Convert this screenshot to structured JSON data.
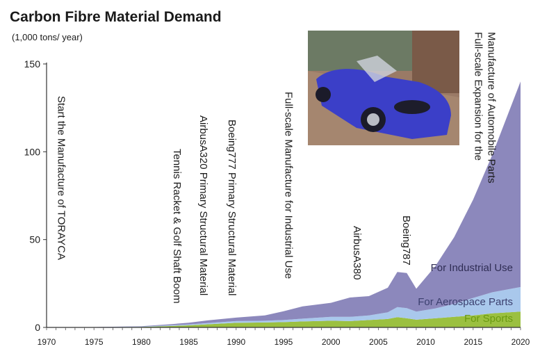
{
  "chart_data": {
    "type": "area",
    "title": "Carbon Fibre Material Demand",
    "ylabel": "(1,000 tons/ year)",
    "xlabel": "",
    "xlim": [
      1970,
      2020
    ],
    "ylim": [
      0,
      150
    ],
    "x_ticks": [
      1970,
      1975,
      1980,
      1985,
      1990,
      1995,
      2000,
      2005,
      2010,
      2015,
      2020
    ],
    "y_ticks": [
      0,
      50,
      100,
      150
    ],
    "x": [
      1970,
      1975,
      1980,
      1983,
      1985,
      1987,
      1990,
      1993,
      1995,
      1997,
      2000,
      2002,
      2004,
      2006,
      2007,
      2008,
      2009,
      2011,
      2013,
      2015,
      2017,
      2020
    ],
    "stacked": true,
    "series": [
      {
        "name": "For Sports",
        "color": "#9bc040",
        "values": [
          0,
          0.1,
          0.3,
          0.8,
          1.2,
          1.8,
          2.6,
          2.8,
          3.0,
          3.4,
          3.8,
          3.6,
          4.2,
          4.8,
          5.8,
          5.2,
          4.4,
          5.2,
          6.0,
          6.8,
          8.0,
          9.0
        ]
      },
      {
        "name": "For Aerospace Parts",
        "color": "#a9c8ec",
        "values": [
          0,
          0.05,
          0.2,
          0.4,
          0.5,
          0.7,
          1.0,
          1.0,
          1.2,
          1.6,
          2.2,
          2.4,
          2.6,
          3.8,
          5.8,
          5.8,
          4.6,
          5.6,
          7.4,
          10.0,
          12.0,
          14.0
        ]
      },
      {
        "name": "For Industrial Use",
        "color": "#8c88bc",
        "values": [
          0,
          0.05,
          0.2,
          0.6,
          1.0,
          1.5,
          2.0,
          3.0,
          5.0,
          7.0,
          8.0,
          11.0,
          11.0,
          14.0,
          20.0,
          20.0,
          13.0,
          24.0,
          38.0,
          56.0,
          78.0,
          117.0
        ]
      }
    ],
    "annotations": [
      {
        "text": "Start the Manufacture of TORAYCA",
        "x": 1971.2
      },
      {
        "text": "Tennis Racket & Golf Shaft Boom",
        "x": 1983.4
      },
      {
        "text": "AirbusA320 Primary Structural Material",
        "x": 1986.2
      },
      {
        "text": "Boeing777 Primary Structural Material",
        "x": 1989.2
      },
      {
        "text": "Full-scale Manufacture for Industrial Use",
        "x": 1995.2
      },
      {
        "text": "AirbusA380",
        "x": 2002.4
      },
      {
        "text": "Boeing787",
        "x": 2007.6
      },
      {
        "text": "Full-scale Expansion for the",
        "x": 2015.2
      },
      {
        "text": "Manufacture of Automobile Parts",
        "x": 2016.6
      }
    ]
  },
  "photo": {
    "caption_icon": "blue-sports-car-photo",
    "colors": {
      "sky": "#6c7a64",
      "pavement": "#9a7a66",
      "car": "#3b3fc8"
    }
  }
}
